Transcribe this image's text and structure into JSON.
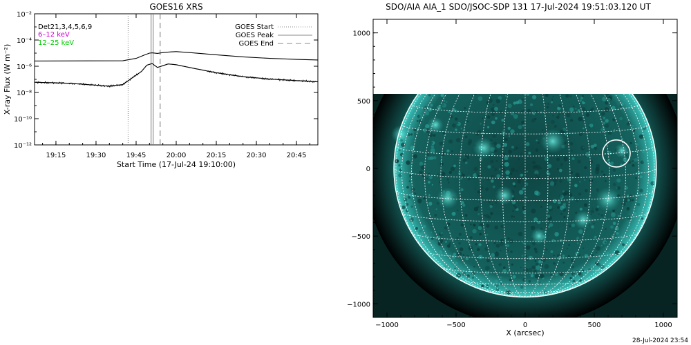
{
  "chart_data": [
    {
      "type": "line",
      "title": "GOES16 XRS",
      "xlabel": "Start Time (17-Jul-24 19:10:00)",
      "ylabel": "X-ray Flux (W m⁻²)",
      "y_scale": "log",
      "ylim": [
        1e-12,
        0.01
      ],
      "xlim": [
        "19:07",
        "20:53"
      ],
      "x_ticks": [
        "19:15",
        "19:30",
        "19:45",
        "20:00",
        "20:15",
        "20:30",
        "20:45"
      ],
      "y_ticks": [
        "10⁻²",
        "10⁻⁴",
        "10⁻⁶",
        "10⁻⁸",
        "10⁻¹⁰",
        "10⁻¹²"
      ],
      "channel_labels": [
        {
          "text": "Det21,3,4,5,6,9",
          "color": "#000000"
        },
        {
          "text": "6–12 keV",
          "color": "#cc00cc"
        },
        {
          "text": "12–25 keV",
          "color": "#00cc00"
        }
      ],
      "legend": {
        "placement": "top-right",
        "entries": [
          {
            "label": "GOES Start",
            "style": "dotted"
          },
          {
            "label": "GOES Peak",
            "style": "solid"
          },
          {
            "label": "GOES End",
            "style": "dashed"
          }
        ]
      },
      "event_lines": {
        "start": "19:42",
        "peak": "19:51",
        "end": "19:54"
      },
      "series": [
        {
          "band": "long",
          "x": [
            "19:07",
            "19:40",
            "19:45",
            "19:48",
            "19:50",
            "19:51",
            "19:53",
            "19:55",
            "19:58",
            "20:00",
            "20:05",
            "20:15",
            "20:25",
            "20:35",
            "20:45",
            "20:53"
          ],
          "y": [
            2.5e-06,
            2.6e-06,
            4e-06,
            7e-06,
            1e-05,
            1.05e-05,
            9.5e-06,
            1.1e-05,
            1.25e-05,
            1.3e-05,
            1.1e-05,
            7.5e-06,
            5.2e-06,
            4e-06,
            3.3e-06,
            3e-06
          ]
        },
        {
          "band": "short",
          "x": [
            "19:07",
            "19:20",
            "19:35",
            "19:40",
            "19:44",
            "19:47",
            "19:49",
            "19:51",
            "19:53",
            "19:55",
            "19:57",
            "20:00",
            "20:05",
            "20:15",
            "20:25",
            "20:35",
            "20:45",
            "20:53"
          ],
          "y": [
            6e-08,
            5e-08,
            3e-08,
            4e-08,
            1.5e-07,
            4e-07,
            1.2e-06,
            1.6e-06,
            8e-07,
            1.1e-06,
            1.5e-06,
            1.3e-06,
            8e-07,
            3.2e-07,
            1.6e-07,
            1.05e-07,
            8e-08,
            6.5e-08
          ]
        }
      ]
    },
    {
      "type": "image",
      "title": "SDO/AIA AIA_1 SDO/JSOC-SDP 131 17-Jul-2024 19:51:03.120 UT",
      "xlabel": "X (arcsec)",
      "ylabel": "",
      "xlim": [
        -1100,
        1100
      ],
      "ylim": [
        -1100,
        1100
      ],
      "x_ticks": [
        "−1000",
        "−500",
        "0",
        "500",
        "1000"
      ],
      "y_ticks": [
        "1000",
        "500",
        "0",
        "−500",
        "−1000"
      ],
      "solar_radius_arcsec": 950,
      "data_coverage_ylim": [
        -1100,
        500
      ],
      "grid": true,
      "colors": {
        "disk_base": "#0f4a49",
        "disk_bright": "#3fc9c0",
        "corona": "#0a2e2e",
        "background": "#000000"
      },
      "flare_marker": {
        "x": 660,
        "y": 110,
        "r": 100
      },
      "active_regions": [
        {
          "x": 700,
          "y": 130,
          "r": 55
        },
        {
          "x": -900,
          "y": 250,
          "r": 70
        },
        {
          "x": -560,
          "y": -220,
          "r": 80
        },
        {
          "x": -150,
          "y": -200,
          "r": 70
        },
        {
          "x": 600,
          "y": -230,
          "r": 90
        },
        {
          "x": 420,
          "y": -380,
          "r": 70
        },
        {
          "x": -300,
          "y": 150,
          "r": 80
        },
        {
          "x": 200,
          "y": 200,
          "r": 90
        },
        {
          "x": -650,
          "y": 320,
          "r": 60
        },
        {
          "x": 100,
          "y": -500,
          "r": 60
        }
      ]
    }
  ],
  "footer_timestamp": "28-Jul-2024 23:54"
}
